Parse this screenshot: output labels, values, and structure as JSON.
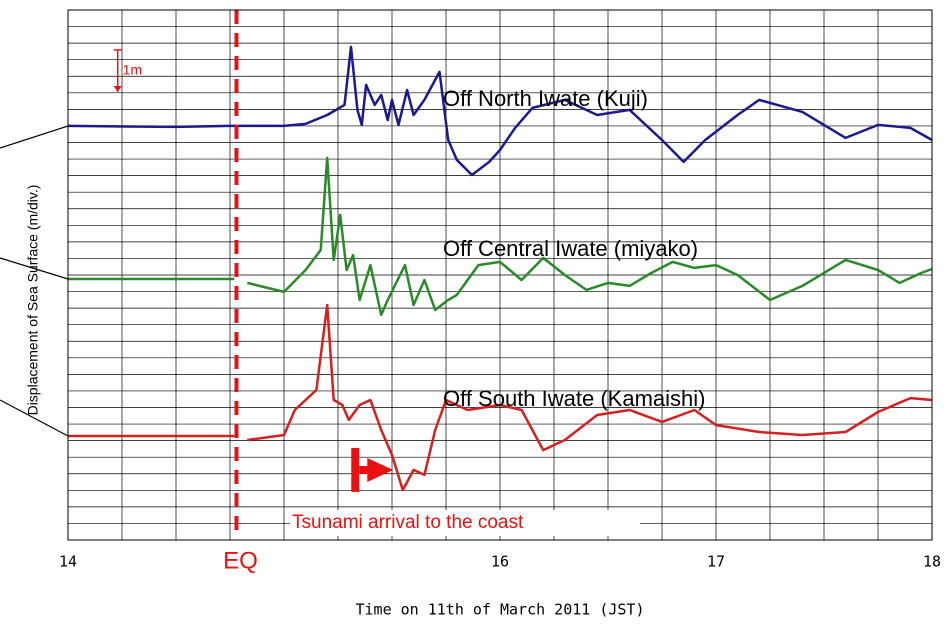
{
  "chart_data": {
    "type": "line",
    "y_label": "Displacement of Sea Surface (m/div.)",
    "x_label": "Time on 11th of March 2011 (JST)",
    "xlim": [
      14,
      18
    ],
    "ylim": [
      0,
      32
    ],
    "xticks": [
      14,
      16,
      17,
      18
    ],
    "xgrid": [
      14,
      14.25,
      14.5,
      14.75,
      15,
      15.25,
      15.5,
      15.75,
      16,
      16.25,
      16.5,
      16.75,
      17,
      17.25,
      17.5,
      17.75,
      18
    ],
    "yticks": [
      0,
      1,
      2,
      3,
      4,
      5,
      6,
      7,
      8,
      9,
      10,
      11,
      12,
      13,
      14,
      15,
      16,
      17,
      18,
      19,
      20,
      21,
      22,
      23,
      24,
      25,
      26,
      27,
      28,
      29,
      30,
      31,
      32
    ],
    "grid": true,
    "series": [
      {
        "name": "Off North Iwate (Kuji)",
        "color": "#1a1a8c",
        "x": [
          14,
          14.5,
          14.75,
          15,
          15.1,
          15.2,
          15.28,
          15.31,
          15.34,
          15.36,
          15.38,
          15.42,
          15.45,
          15.48,
          15.5,
          15.53,
          15.57,
          15.6,
          15.65,
          15.72,
          15.76,
          15.8,
          15.87,
          15.95,
          16,
          16.07,
          16.15,
          16.3,
          16.45,
          16.6,
          16.75,
          16.85,
          16.95,
          17.1,
          17.2,
          17.4,
          17.5,
          17.6,
          17.75,
          17.9,
          18
        ],
        "values": [
          25,
          24.94,
          25,
          25,
          25.12,
          25.66,
          26.27,
          29.77,
          25.97,
          25.06,
          27.48,
          26.27,
          26.87,
          25.36,
          26.57,
          25.06,
          27.17,
          25.66,
          26.57,
          28.26,
          24.15,
          22.95,
          22.04,
          22.83,
          23.55,
          24.88,
          26.09,
          26.57,
          25.66,
          25.97,
          24.15,
          22.83,
          24.15,
          25.66,
          26.57,
          25.85,
          25.06,
          24.28,
          25.06,
          24.88,
          24.15
        ]
      },
      {
        "name": "Off Central Iwate (miyako)",
        "color": "#2a8a2a",
        "x": [
          14,
          14.5,
          14.77,
          14.8,
          14.83,
          15,
          15.1,
          15.17,
          15.2,
          15.23,
          15.26,
          15.29,
          15.32,
          15.35,
          15.4,
          15.45,
          15.48,
          15.56,
          15.6,
          15.65,
          15.7,
          15.76,
          15.8,
          15.9,
          16,
          16.1,
          16.2,
          16.3,
          16.4,
          16.5,
          16.6,
          16.7,
          16.8,
          16.9,
          17,
          17.1,
          17.25,
          17.4,
          17.6,
          17.75,
          17.85,
          17.95,
          18
        ],
        "values": [
          15.76,
          15.76,
          15.76,
          null,
          15.52,
          14.98,
          16.3,
          17.51,
          23.07,
          16.91,
          19.63,
          16.3,
          17.21,
          14.49,
          16.6,
          13.59,
          14.49,
          16.6,
          14.19,
          15.7,
          13.89,
          14.49,
          14.8,
          16.6,
          16.79,
          15.7,
          17.03,
          16,
          15.1,
          15.52,
          15.34,
          16.12,
          16.79,
          16.43,
          16.6,
          16,
          14.49,
          15.34,
          16.91,
          16.3,
          15.52,
          16.12,
          16.36
        ]
      },
      {
        "name": "Off South Iwate (Kamaishi)",
        "color": "#d42020",
        "x": [
          14,
          14.5,
          14.77,
          14.8,
          14.83,
          15,
          15.05,
          15.1,
          15.15,
          15.2,
          15.23,
          15.27,
          15.3,
          15.35,
          15.4,
          15.45,
          15.5,
          15.55,
          15.6,
          15.65,
          15.7,
          15.75,
          15.85,
          16,
          16.1,
          16.2,
          16.3,
          16.45,
          16.6,
          16.75,
          16.9,
          17,
          17.2,
          17.4,
          17.6,
          17.75,
          17.9,
          18
        ],
        "values": [
          6.28,
          6.28,
          6.28,
          null,
          6.04,
          6.34,
          7.85,
          8.45,
          9.06,
          14.19,
          8.45,
          8.15,
          7.25,
          8.15,
          8.45,
          6.64,
          5.13,
          3.02,
          4.23,
          3.93,
          6.64,
          8.45,
          7.85,
          8.15,
          7.85,
          5.43,
          6.04,
          7.55,
          7.85,
          7.13,
          7.85,
          6.94,
          6.52,
          6.34,
          6.52,
          7.73,
          8.57,
          8.45
        ]
      }
    ],
    "scale_bar": {
      "label": "1m",
      "x": 14.23,
      "y0": 27.05,
      "y1": 29.59
    },
    "eq": {
      "label": "EQ",
      "x": 14.78
    },
    "arrival": {
      "label": "Tsunami arrival to the coast",
      "x": 15.33,
      "y": 4.23
    }
  }
}
